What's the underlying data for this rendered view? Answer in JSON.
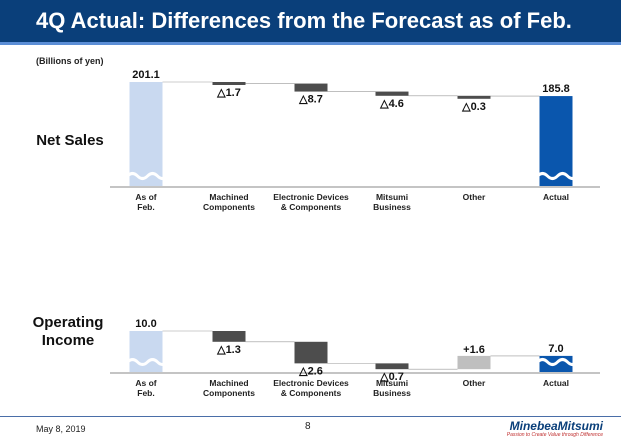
{
  "title": "4Q Actual: Differences from the Forecast as of Feb.",
  "unit_label": "(Billions of yen)",
  "footer": {
    "date": "May 8, 2019",
    "page": "8",
    "logo": "MinebeaMitsumi",
    "tagline": "Passion to Create Value through Difference"
  },
  "colors": {
    "title_bg": "#0a3f7a",
    "start_bar": "#c9d9f0",
    "end_bar": "#0a56ad",
    "decrease": "#4d4d4d",
    "increase": "#bfbfbf"
  },
  "chart_data": [
    {
      "type": "bar",
      "subtype": "waterfall",
      "title": "Net Sales",
      "categories": [
        "As of Feb.",
        "Machined Components",
        "Electronic Devices & Components",
        "Mitsumi Business",
        "Other",
        "Actual"
      ],
      "category_lines": [
        [
          "As of",
          "Feb."
        ],
        [
          "Machined",
          "Components"
        ],
        [
          "Electronic Devices",
          "& Components"
        ],
        [
          "Mitsumi",
          "Business"
        ],
        [
          "Other"
        ],
        [
          "Actual"
        ]
      ],
      "values": [
        201.1,
        -1.7,
        -8.7,
        -4.6,
        -0.3,
        185.8
      ],
      "labels": [
        "201.1",
        "△1.7",
        "△8.7",
        "△4.6",
        "△0.3",
        "185.8"
      ],
      "unit": "Billions of yen",
      "axis_broken": true
    },
    {
      "type": "bar",
      "subtype": "waterfall",
      "title": "Operating Income",
      "categories": [
        "As of Feb.",
        "Machined Components",
        "Electronic Devices & Components",
        "Mitsumi Business",
        "Other",
        "Actual"
      ],
      "category_lines": [
        [
          "As of",
          "Feb."
        ],
        [
          "Machined",
          "Components"
        ],
        [
          "Electronic Devices",
          "& Components"
        ],
        [
          "Mitsumi",
          "Business"
        ],
        [
          "Other"
        ],
        [
          "Actual"
        ]
      ],
      "values": [
        10.0,
        -1.3,
        -2.6,
        -0.7,
        1.6,
        7.0
      ],
      "labels": [
        "10.0",
        "△1.3",
        "△2.6",
        "△0.7",
        "+1.6",
        "7.0"
      ],
      "unit": "Billions of yen",
      "axis_broken": true
    }
  ]
}
